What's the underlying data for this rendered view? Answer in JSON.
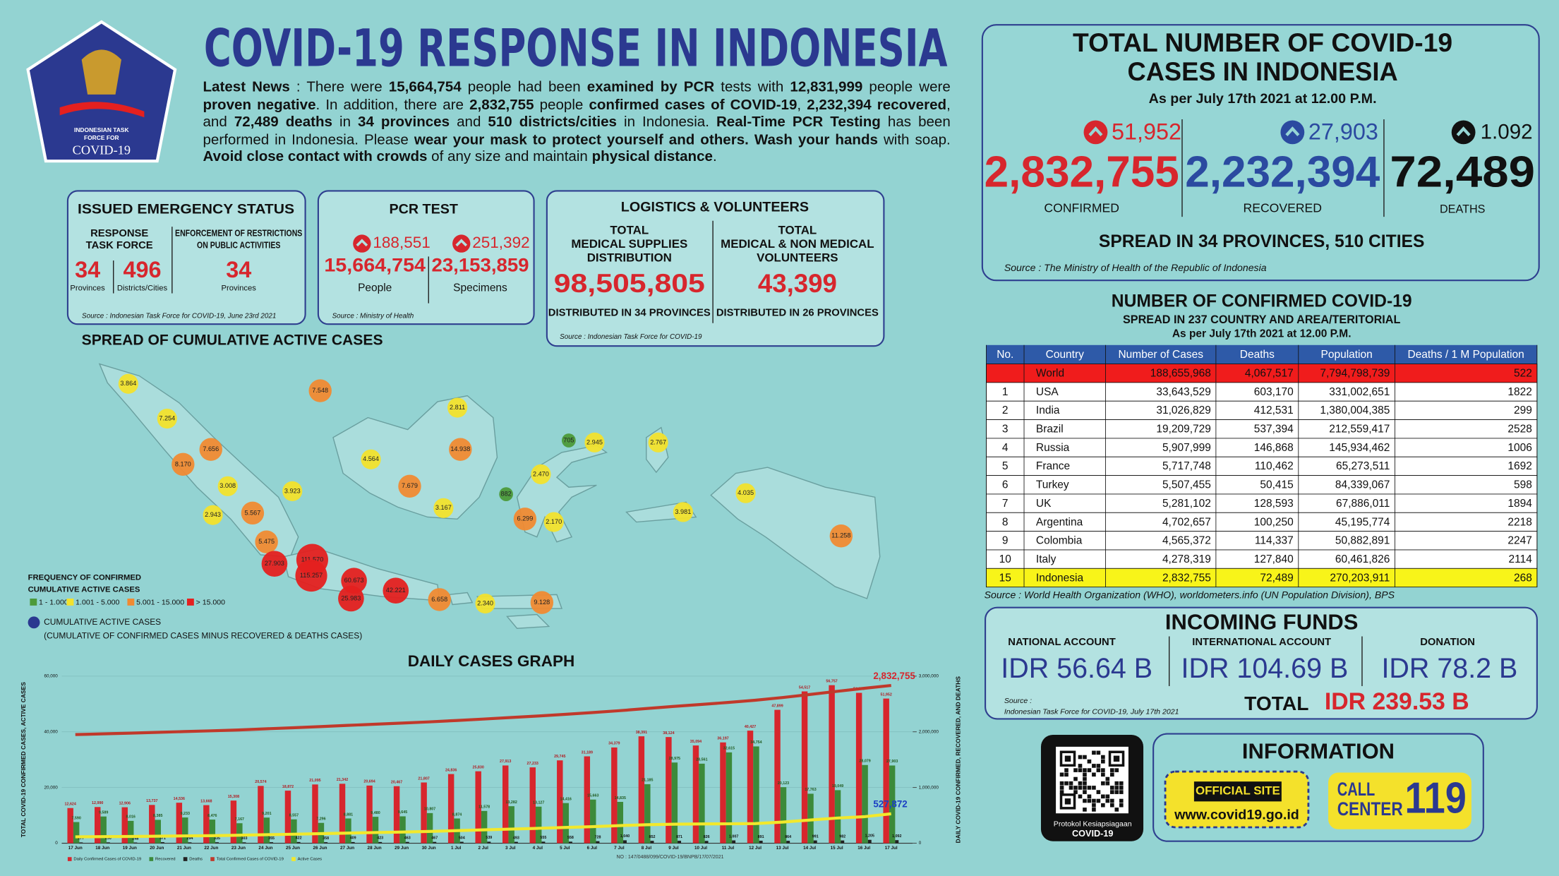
{
  "logo": {
    "lines": [
      "INDONESIAN TASK",
      "FORCE FOR"
    ],
    "name": "COVID-19"
  },
  "title": "COVID-19 RESPONSE IN INDONESIA",
  "news": [
    {
      "text": "Latest News",
      "bold": true
    },
    {
      "text": " : There were ",
      "bold": false
    },
    {
      "text": "15,664,754",
      "bold": true
    },
    {
      "text": " people had been ",
      "bold": false
    },
    {
      "text": "examined by PCR",
      "bold": true
    },
    {
      "text": " tests with ",
      "bold": false
    },
    {
      "text": "12,831,999",
      "bold": true
    },
    {
      "text": " people were ",
      "bold": false
    },
    {
      "text": "proven negative",
      "bold": true
    },
    {
      "text": ". In addition, there are ",
      "bold": false
    },
    {
      "text": "2,832,755",
      "bold": true
    },
    {
      "text": " people ",
      "bold": false
    },
    {
      "text": "confirmed cases of COVID-19",
      "bold": true
    },
    {
      "text": ", ",
      "bold": false
    },
    {
      "text": "2,232,394",
      "bold": true
    },
    {
      "text": " ",
      "bold": false
    },
    {
      "text": "recovered",
      "bold": true
    },
    {
      "text": ", and ",
      "bold": false
    },
    {
      "text": "72,489 deaths",
      "bold": true
    },
    {
      "text": " in ",
      "bold": false
    },
    {
      "text": "34 provinces",
      "bold": true
    },
    {
      "text": " and ",
      "bold": false
    },
    {
      "text": "510 districts/cities",
      "bold": true
    },
    {
      "text": " in Indonesia. ",
      "bold": false
    },
    {
      "text": "Real-Time PCR Testing",
      "bold": true
    },
    {
      "text": " has been performed in Indonesia. Please ",
      "bold": false
    },
    {
      "text": "wear your mask to protect yourself and others. Wash your hands",
      "bold": true
    },
    {
      "text": " with soap. ",
      "bold": false
    },
    {
      "text": "Avoid close contact with crowds",
      "bold": true
    },
    {
      "text": " of any size and maintain ",
      "bold": false
    },
    {
      "text": "physical distance",
      "bold": true
    },
    {
      "text": ".",
      "bold": false
    }
  ],
  "emergency": {
    "title": "ISSUED EMERGENCY STATUS",
    "head1": [
      "RESPONSE",
      "TASK FORCE"
    ],
    "head2": [
      "ENFORCEMENT OF RESTRICTIONS",
      "ON PUBLIC ACTIVITIES"
    ],
    "v1": "34",
    "u1": "Provinces",
    "v2": "496",
    "u2": "Districts/Cities",
    "v3": "34",
    "u3": "Provinces",
    "source": "Source : Indonesian Task Force for COVID-19, June 23rd 2021"
  },
  "pcr": {
    "title": "PCR TEST",
    "inc1": "188,551",
    "inc2": "251,392",
    "v1": "15,664,754",
    "l1": "People",
    "v2": "23,153,859",
    "l2": "Specimens",
    "source": "Source : Ministry of Health"
  },
  "logistics": {
    "title": "LOGISTICS & VOLUNTEERS",
    "head1": [
      "TOTAL",
      "MEDICAL SUPPLIES",
      "DISTRIBUTION"
    ],
    "v1": "98,505,805",
    "d1": "DISTRIBUTED IN 34 PROVINCES",
    "head2": [
      "TOTAL",
      "MEDICAL & NON MEDICAL",
      "VOLUNTEERS"
    ],
    "v2": "43,399",
    "d2": "DISTRIBUTED IN 26 PROVINCES",
    "source": "Source : Indonesian Task Force for COVID-19"
  },
  "map": {
    "title": "SPREAD OF CUMULATIVE ACTIVE CASES",
    "bubbles": [
      {
        "label": "3.864",
        "color": "#f2e22c"
      },
      {
        "label": "7.548",
        "color": "#f08a32"
      },
      {
        "label": "7.254",
        "color": "#f2e22c"
      },
      {
        "label": "2.811",
        "color": "#f2e22c"
      },
      {
        "label": "7.656",
        "color": "#f08a32"
      },
      {
        "label": "8.170",
        "color": "#f08a32"
      },
      {
        "label": "4.564",
        "color": "#f2e22c"
      },
      {
        "label": "14.938",
        "color": "#f08a32"
      },
      {
        "label": "705",
        "color": "#4c9a3a"
      },
      {
        "label": "2.945",
        "color": "#f2e22c"
      },
      {
        "label": "2.767",
        "color": "#f2e22c"
      },
      {
        "label": "3.008",
        "color": "#f2e22c"
      },
      {
        "label": "3.923",
        "color": "#f2e22c"
      },
      {
        "label": "7.679",
        "color": "#f08a32"
      },
      {
        "label": "882",
        "color": "#4c9a3a"
      },
      {
        "label": "2.470",
        "color": "#f2e22c"
      },
      {
        "label": "4.035",
        "color": "#f2e22c"
      },
      {
        "label": "2.943",
        "color": "#f2e22c"
      },
      {
        "label": "5.567",
        "color": "#f08a32"
      },
      {
        "label": "3.167",
        "color": "#f2e22c"
      },
      {
        "label": "6.299",
        "color": "#f08a32"
      },
      {
        "label": "2.170",
        "color": "#f2e22c"
      },
      {
        "label": "3.981",
        "color": "#f2e22c"
      },
      {
        "label": "11.258",
        "color": "#f08a32"
      },
      {
        "label": "5.475",
        "color": "#f08a32"
      },
      {
        "label": "27.903",
        "color": "#e4201f"
      },
      {
        "label": "111.570",
        "color": "#e4201f"
      },
      {
        "label": "115.257",
        "color": "#e4201f"
      },
      {
        "label": "60.673",
        "color": "#e4201f"
      },
      {
        "label": "25.983",
        "color": "#e4201f"
      },
      {
        "label": "42.221",
        "color": "#e4201f"
      },
      {
        "label": "6.658",
        "color": "#f08a32"
      },
      {
        "label": "2.340",
        "color": "#f2e22c"
      },
      {
        "label": "9.128",
        "color": "#f08a32"
      }
    ],
    "legend_title": [
      "FREQUENCY OF CONFIRMED",
      "CUMULATIVE ACTIVE CASES"
    ],
    "legend": [
      {
        "label": "1 - 1.000",
        "color": "#4c9a3a"
      },
      {
        "label": "1.001 - 5.000",
        "color": "#f2e22c"
      },
      {
        "label": "5.001 - 15.000",
        "color": "#f08a32"
      },
      {
        "label": "> 15.000",
        "color": "#e4201f"
      }
    ],
    "note": "CUMULATIVE ACTIVE CASES",
    "note_sub": "(CUMULATIVE OF CONFIRMED CASES MINUS RECOVERED & DEATHS CASES)"
  },
  "chart_data": {
    "type": "bar",
    "title": "DAILY CASES GRAPH",
    "ylabel": "TOTAL COVID-19 CONFIRMED CASES, ACTIVE CASES",
    "y2label": "DAILY COVID-19 CONFIRMED, RECOVERED, AND DEATHS",
    "grid": true,
    "categories": [
      "17 Jun",
      "18 Jun",
      "19 Jun",
      "20 Jun",
      "21 Jun",
      "22 Jun",
      "23 Jun",
      "24 Jun",
      "25 Jun",
      "26 Jun",
      "27 Jun",
      "28 Jun",
      "29 Jun",
      "30 Jun",
      "1 Jul",
      "2 Jul",
      "3 Jul",
      "4 Jul",
      "5 Jul",
      "6 Jul",
      "7 Jul",
      "8 Jul",
      "9 Jul",
      "10 Jul",
      "11 Jul",
      "12 Jul",
      "13 Jul",
      "14 Jul",
      "15 Jul",
      "16 Jul",
      "17 Jul"
    ],
    "ylim": [
      0,
      60000
    ],
    "yticks": [
      0,
      {
        "value": 20000,
        "label": "20,000"
      },
      {
        "value": 40000,
        "label": "40,000"
      },
      {
        "value": 60000,
        "label": "60,000"
      }
    ],
    "y2lim": [
      0,
      3000000
    ],
    "y2ticks": [
      0,
      {
        "value": 1000000,
        "label": "1,000,000"
      },
      {
        "value": 2000000,
        "label": "2,000,000"
      },
      {
        "value": 3000000,
        "label": "3,000,000"
      }
    ],
    "series": [
      {
        "name": "Daily Confirmed Cases of COVID-19",
        "kind": "bar",
        "color": "#d7262d",
        "label_color": "#b01c22",
        "values": [
          12624,
          12990,
          12906,
          13737,
          14536,
          13668,
          15308,
          20574,
          18872,
          21095,
          21342,
          20694,
          20467,
          21807,
          24836,
          25830,
          27913,
          27233,
          29745,
          31189,
          34379,
          38391,
          38124,
          35094,
          36197,
          40427,
          47899,
          54517,
          56757,
          54000,
          51952
        ],
        "value_labels": [
          "12,624",
          "12,990",
          "12,906",
          "13,737",
          "14,536",
          "13,668",
          "15,308",
          "20,574",
          "18,872",
          "21,095",
          "21,342",
          "20,694",
          "20,467",
          "21,807",
          "24,836",
          "25,830",
          "27,913",
          "27,233",
          "29,745",
          "31,189",
          "34,379",
          "38,391",
          "38,124",
          "35,094",
          "36,197",
          "40,427",
          "47,899",
          "54,517",
          "56,757",
          "54,000",
          "51,952"
        ]
      },
      {
        "name": "Recovered",
        "kind": "bar",
        "color": "#3c8a3a",
        "label_color": "#1f5a1f",
        "values": [
          7590,
          9589,
          8016,
          8385,
          9233,
          8476,
          7167,
          9201,
          8557,
          7296,
          8881,
          9480,
          9645,
          10807,
          8874,
          11578,
          13282,
          13127,
          14416,
          15663,
          14835,
          21185,
          28975,
          28561,
          32615,
          34754,
          20123,
          17763,
          19049,
          28079,
          27903
        ],
        "value_labels": [
          "7,590",
          "9,589",
          "8,016",
          "8,385",
          "9,233",
          "8,476",
          "7,167",
          "9,201",
          "8,557",
          "7,296",
          "8,881",
          "9,480",
          "9,645",
          "10,807",
          "8,874",
          "11,578",
          "13,282",
          "13,127",
          "14,416",
          "15,663",
          "14,835",
          "21,185",
          "28,975",
          "28,561",
          "32,615",
          "34,754",
          "20,123",
          "17,763",
          "19,049",
          "28,079",
          "27,903"
        ]
      },
      {
        "name": "Deaths",
        "kind": "bar",
        "color": "#222222",
        "label_color": "#111111",
        "values": [
          277,
          290,
          248,
          371,
          294,
          335,
          303,
          355,
          422,
          358,
          409,
          423,
          463,
          467,
          504,
          539,
          493,
          555,
          558,
          728,
          1040,
          852,
          871,
          826,
          1007,
          891,
          864,
          991,
          982,
          1205,
          1092
        ],
        "value_labels": [
          "277",
          "290",
          "248",
          "371",
          "294",
          "335",
          "303",
          "355",
          "422",
          "358",
          "409",
          "423",
          "463",
          "467",
          "504",
          "539",
          "493",
          "555",
          "558",
          "728",
          "1,040",
          "852",
          "871",
          "826",
          "1,007",
          "891",
          "864",
          "991",
          "982",
          "1,205",
          "1,092"
        ]
      },
      {
        "name": "Total Confirmed Cases of COVID-19",
        "kind": "line",
        "axis": "y2",
        "color": "#c0392b",
        "label_color": "#d7262d",
        "values": [
          1950276,
          1963266,
          1976172,
          1989909,
          2004445,
          2018113,
          2033421,
          2053995,
          2072867,
          2093962,
          2115304,
          2135998,
          2156465,
          2178272,
          2203108,
          2228938,
          2256851,
          2284084,
          2313829,
          2345018,
          2379397,
          2417788,
          2455912,
          2491006,
          2527203,
          2567630,
          2615529,
          2670046,
          2726803,
          2780803,
          2832755
        ],
        "value_labels": [
          null,
          null,
          null,
          null,
          null,
          null,
          null,
          null,
          null,
          null,
          null,
          null,
          null,
          null,
          null,
          null,
          null,
          null,
          null,
          null,
          null,
          null,
          null,
          null,
          null,
          null,
          null,
          null,
          null,
          null,
          "2,832,755"
        ]
      },
      {
        "name": "Active Cases",
        "kind": "line",
        "axis": "y2",
        "color": "#f2e82c",
        "label_color": "#1b3fc4",
        "values": [
          114000,
          117000,
          121000,
          126000,
          131000,
          135000,
          143000,
          152000,
          161000,
          171000,
          181000,
          191000,
          200000,
          211000,
          225000,
          240000,
          253000,
          267000,
          282000,
          297000,
          316000,
          332000,
          341000,
          346000,
          348000,
          352000,
          379000,
          415000,
          451000,
          475000,
          527872
        ],
        "value_labels": [
          null,
          null,
          null,
          null,
          null,
          null,
          null,
          null,
          null,
          null,
          null,
          null,
          null,
          null,
          null,
          null,
          null,
          null,
          null,
          null,
          null,
          null,
          null,
          null,
          null,
          null,
          null,
          null,
          null,
          null,
          "527,872"
        ]
      }
    ],
    "doc_number": "NO : 147/0488/099/COVID-19/BNPB/17/07/2021"
  },
  "totals": {
    "title": [
      "TOTAL NUMBER OF COVID-19",
      "CASES IN INDONESIA"
    ],
    "asof": "As per July 17th 2021 at 12.00 P.M.",
    "confirmed_inc": "51,952",
    "confirmed": "2,832,755",
    "confirmed_label": "CONFIRMED",
    "recovered_inc": "27,903",
    "recovered": "2,232,394",
    "recovered_label": "RECOVERED",
    "deaths_inc": "1.092",
    "deaths": "72,489",
    "deaths_label": "DEATHS",
    "spread": "SPREAD IN 34 PROVINCES, 510 CITIES",
    "source": "Source : The Ministry of Health of the Republic of Indonesia"
  },
  "world": {
    "title": "NUMBER OF CONFIRMED COVID-19",
    "subtitle": "SPREAD IN 237 COUNTRY AND AREA/TERITORIAL",
    "asof": "As per July 17th 2021 at 12.00 P.M.",
    "header": [
      "No.",
      "Country",
      "Number of Cases",
      "Deaths",
      "Population",
      "Deaths / 1 M Population"
    ],
    "rows": [
      {
        "country": "World",
        "cases": "188,655,968",
        "deaths": "4,067,517",
        "population": "7,794,798,739",
        "per_million": "522"
      },
      {
        "no": "1",
        "country": "USA",
        "cases": "33,643,529",
        "deaths": "603,170",
        "population": "331,002,651",
        "per_million": "1822"
      },
      {
        "no": "2",
        "country": "India",
        "cases": "31,026,829",
        "deaths": "412,531",
        "population": "1,380,004,385",
        "per_million": "299"
      },
      {
        "no": "3",
        "country": "Brazil",
        "cases": "19,209,729",
        "deaths": "537,394",
        "population": "212,559,417",
        "per_million": "2528"
      },
      {
        "no": "4",
        "country": "Russia",
        "cases": "5,907,999",
        "deaths": "146,868",
        "population": "145,934,462",
        "per_million": "1006"
      },
      {
        "no": "5",
        "country": "France",
        "cases": "5,717,748",
        "deaths": "110,462",
        "population": "65,273,511",
        "per_million": "1692"
      },
      {
        "no": "6",
        "country": "Turkey",
        "cases": "5,507,455",
        "deaths": "50,415",
        "population": "84,339,067",
        "per_million": "598"
      },
      {
        "no": "7",
        "country": "UK",
        "cases": "5,281,102",
        "deaths": "128,593",
        "population": "67,886,011",
        "per_million": "1894"
      },
      {
        "no": "8",
        "country": "Argentina",
        "cases": "4,702,657",
        "deaths": "100,250",
        "population": "45,195,774",
        "per_million": "2218"
      },
      {
        "no": "9",
        "country": "Colombia",
        "cases": "4,565,372",
        "deaths": "114,337",
        "population": "50,882,891",
        "per_million": "2247"
      },
      {
        "no": "10",
        "country": "Italy",
        "cases": "4,278,319",
        "deaths": "127,840",
        "population": "60,461,826",
        "per_million": "2114"
      },
      {
        "no": "15",
        "country": "Indonesia",
        "cases": "2,832,755",
        "deaths": "72,489",
        "population": "270,203,911",
        "per_million": "268"
      }
    ],
    "source": "Source : World Health Organization (WHO), worldometers.info (UN Population Division), BPS"
  },
  "funds": {
    "title": "INCOMING FUNDS",
    "items": [
      {
        "label": "NATIONAL ACCOUNT",
        "value": "IDR 56.64 B"
      },
      {
        "label": "INTERNATIONAL ACCOUNT",
        "value": "IDR 104.69 B"
      },
      {
        "label": "DONATION",
        "value": "IDR 78.2 B"
      }
    ],
    "source": [
      "Source :",
      "Indonesian Task Force for COVID-19, July 17th 2021"
    ],
    "total_label": "TOTAL",
    "total": "IDR 239.53 B"
  },
  "qr": {
    "caption": [
      "Protokol Kesiapsiagaan",
      "COVID-19"
    ]
  },
  "info": {
    "title": "INFORMATION",
    "site_label": "OFFICIAL SITE",
    "site": "www.covid19.go.id",
    "call": [
      "CALL",
      "CENTER"
    ],
    "number": "119"
  }
}
